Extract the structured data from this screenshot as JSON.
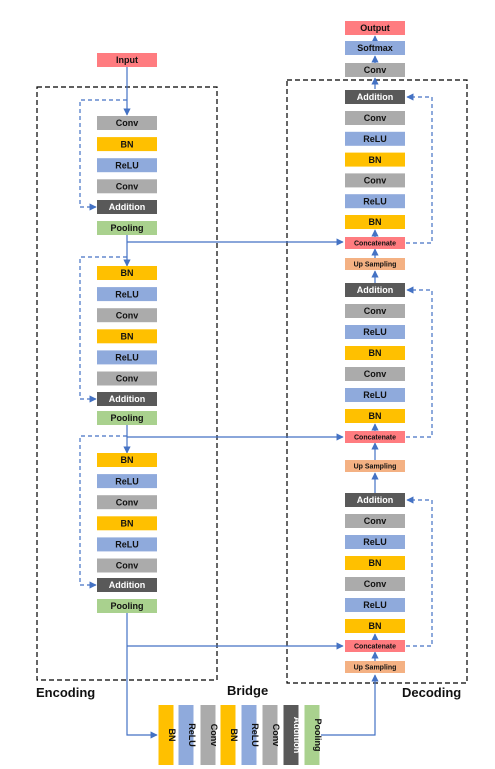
{
  "labels": {
    "encoding": "Encoding",
    "decoding": "Decoding",
    "bridge": "Bridge"
  },
  "colors": {
    "conv": "#ababab",
    "bn": "#ffc000",
    "relu": "#8faadc",
    "addition": "#595959",
    "pooling": "#a9d18e",
    "io": "#ff7c80",
    "concatenate": "#ff7c80",
    "upsampling": "#f4b183",
    "softmax": "#8faadc",
    "arrow": "#4472c4"
  },
  "encoding": {
    "input": "Input",
    "stages": [
      {
        "blocks": [
          "Conv",
          "BN",
          "ReLU",
          "Conv"
        ],
        "addition": "Addition",
        "pooling": "Pooling"
      },
      {
        "blocks": [
          "BN",
          "ReLU",
          "Conv",
          "BN",
          "ReLU",
          "Conv"
        ],
        "addition": "Addition",
        "pooling": "Pooling"
      },
      {
        "blocks": [
          "BN",
          "ReLU",
          "Conv",
          "BN",
          "ReLU",
          "Conv"
        ],
        "addition": "Addition",
        "pooling": "Pooling"
      }
    ]
  },
  "bridge": {
    "blocks": [
      "BN",
      "ReLU",
      "Conv",
      "BN",
      "ReLU",
      "Conv",
      "Addition",
      "Pooling"
    ]
  },
  "decoding": {
    "head": {
      "output": "Output",
      "softmax": "Softmax",
      "conv": "Conv"
    },
    "stages": [
      {
        "addition": "Addition",
        "blocks": [
          "Conv",
          "ReLU",
          "BN",
          "Conv",
          "ReLU",
          "BN"
        ],
        "concatenate": "Concatenate",
        "upsampling": "Up Sampling"
      },
      {
        "addition": "Addition",
        "blocks": [
          "Conv",
          "ReLU",
          "BN",
          "Conv",
          "ReLU",
          "BN"
        ],
        "concatenate": "Concatenate",
        "upsampling": "Up Sampling"
      },
      {
        "addition": "Addition",
        "blocks": [
          "Conv",
          "ReLU",
          "BN",
          "Conv",
          "ReLU",
          "BN"
        ],
        "concatenate": "Concatenate",
        "upsampling": "Up Sampling"
      }
    ]
  }
}
